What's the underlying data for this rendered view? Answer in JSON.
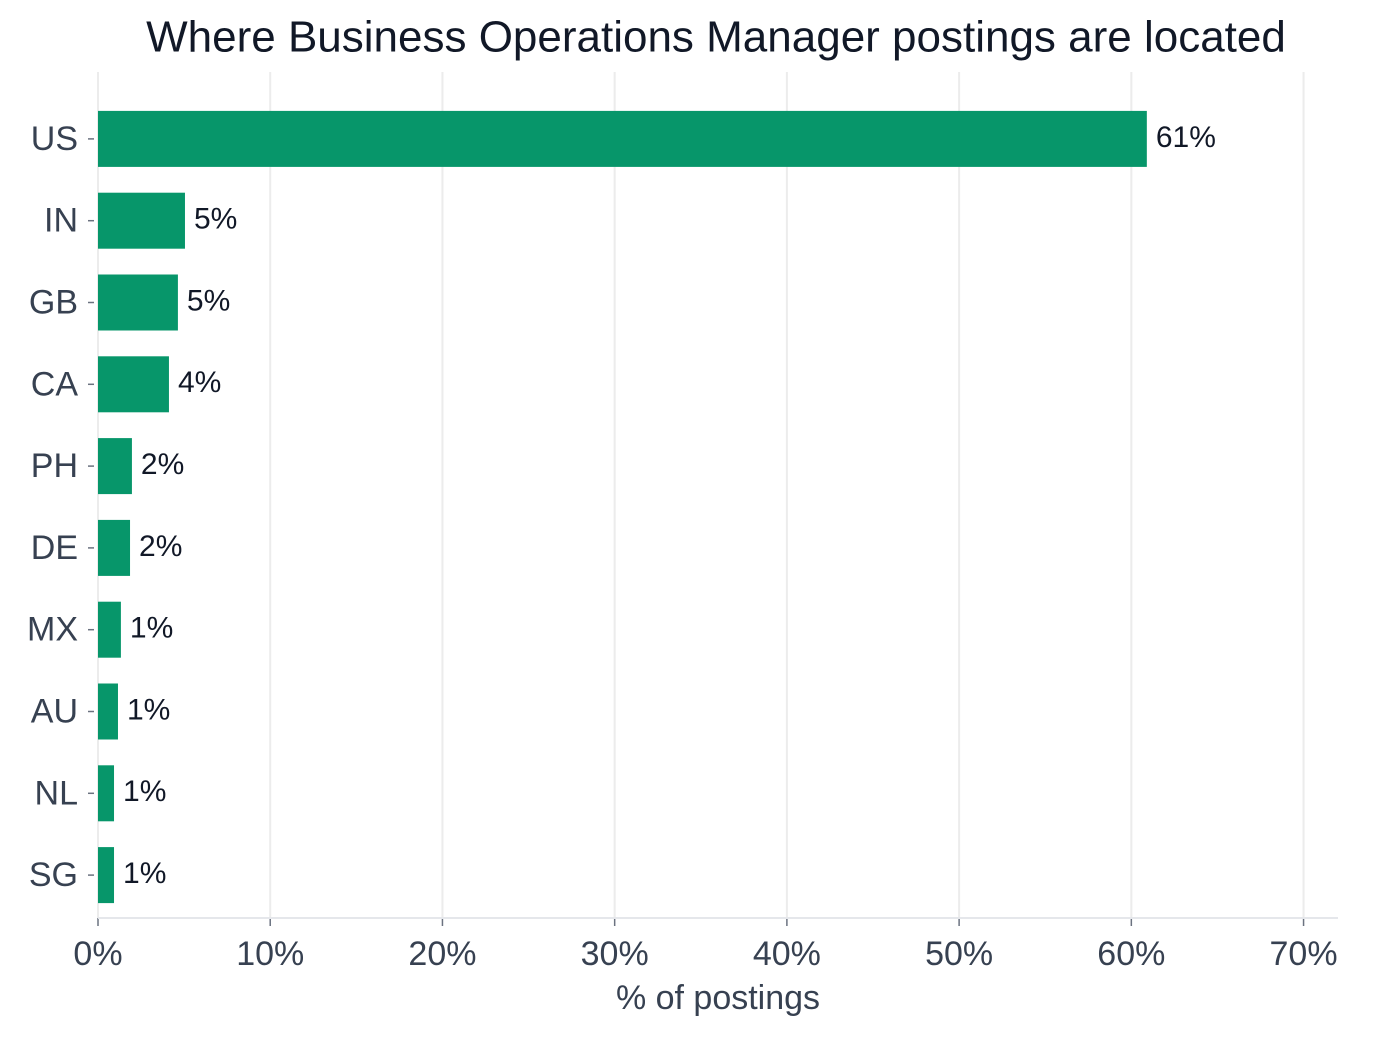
{
  "chart_data": {
    "type": "bar",
    "orientation": "horizontal",
    "title": "Where Business Operations Manager postings are located",
    "x_label": "% of postings",
    "categories": [
      "US",
      "IN",
      "GB",
      "CA",
      "PH",
      "DE",
      "MX",
      "AU",
      "NL",
      "SG"
    ],
    "values": [
      60.9,
      5.05,
      4.64,
      4.12,
      1.97,
      1.86,
      1.33,
      1.16,
      0.93,
      0.93
    ],
    "value_labels": [
      "61%",
      "5%",
      "5%",
      "4%",
      "2%",
      "2%",
      "1%",
      "1%",
      "1%",
      "1%"
    ],
    "color": "#07966a",
    "xlim": [
      0,
      72
    ],
    "xticks": [
      {
        "value": 0,
        "label": "0%"
      },
      {
        "value": 10,
        "label": "10%"
      },
      {
        "value": 20,
        "label": "20%"
      },
      {
        "value": 30,
        "label": "30%"
      },
      {
        "value": 40,
        "label": "40%"
      },
      {
        "value": 50,
        "label": "50%"
      },
      {
        "value": 60,
        "label": "60%"
      },
      {
        "value": 70,
        "label": "70%"
      }
    ],
    "grid": true
  }
}
